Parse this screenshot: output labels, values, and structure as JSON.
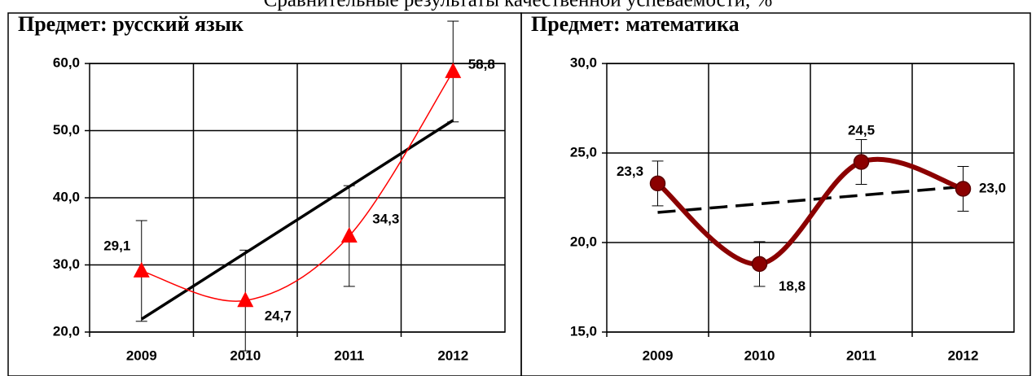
{
  "title": "Сравнительные результаты качественной успеваемости, %",
  "chart_data": [
    {
      "type": "line",
      "title": "Предмет: русский язык",
      "categories": [
        "2009",
        "2010",
        "2011",
        "2012"
      ],
      "series": [
        {
          "color": "#ff0000",
          "marker": "triangle",
          "values": [
            29.1,
            24.7,
            34.3,
            58.8
          ],
          "value_labels": [
            "29,1",
            "24,7",
            "34,3",
            "58,8"
          ],
          "error": [
            7.5,
            7.5,
            7.5,
            7.5
          ]
        }
      ],
      "trendline": "linear",
      "trendline_color": "#000000",
      "trendline_style": "solid",
      "ylim": [
        20,
        60
      ],
      "yticks": [
        {
          "value": 20,
          "label": "20,0"
        },
        {
          "value": 30,
          "label": "30,0"
        },
        {
          "value": 40,
          "label": "40,0"
        },
        {
          "value": 50,
          "label": "50,0"
        },
        {
          "value": 60,
          "label": "60,0"
        }
      ],
      "grid": true
    },
    {
      "type": "line",
      "title": "Предмет: математика",
      "categories": [
        "2009",
        "2010",
        "2011",
        "2012"
      ],
      "series": [
        {
          "color": "#8b0000",
          "marker": "circle",
          "values": [
            23.3,
            18.8,
            24.5,
            23.0
          ],
          "value_labels": [
            "23,3",
            "18,8",
            "24,5",
            "23,0"
          ],
          "error": [
            1.25,
            1.25,
            1.25,
            1.25
          ]
        }
      ],
      "trendline": "linear",
      "trendline_color": "#000000",
      "trendline_style": "dashed",
      "ylim": [
        15,
        30
      ],
      "yticks": [
        {
          "value": 15,
          "label": "15,0"
        },
        {
          "value": 20,
          "label": "20,0"
        },
        {
          "value": 25,
          "label": "25,0"
        },
        {
          "value": 30,
          "label": "30,0"
        }
      ],
      "grid": true
    }
  ]
}
